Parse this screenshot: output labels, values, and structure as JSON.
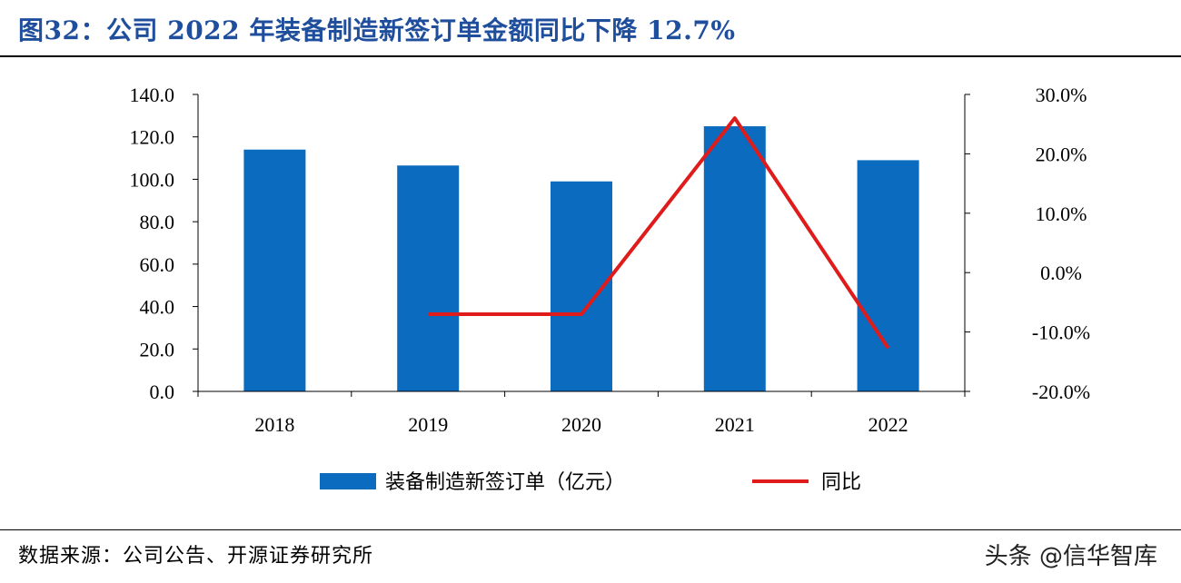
{
  "header": {
    "title": "图32：公司 2022 年装备制造新签订单金额同比下降 12.7%"
  },
  "footer": {
    "source": "数据来源：公司公告、开源证券研究所",
    "watermark": "头条 @信华智库"
  },
  "colors": {
    "bar": "#0b6cbf",
    "line": "#e01b1b",
    "title": "#1f4e9c"
  },
  "chart_data": {
    "type": "bar",
    "title": "公司 2022 年装备制造新签订单金额同比下降 12.7%",
    "categories": [
      "2018",
      "2019",
      "2020",
      "2021",
      "2022"
    ],
    "series": [
      {
        "name": "装备制造新签订单（亿元）",
        "type": "bar",
        "axis": "left",
        "values": [
          114.0,
          106.5,
          99.0,
          125.0,
          109.0
        ]
      },
      {
        "name": "同比",
        "type": "line",
        "axis": "right",
        "values": [
          null,
          -7.0,
          -7.0,
          26.0,
          -12.7
        ]
      }
    ],
    "left_axis": {
      "ylim": [
        0,
        140
      ],
      "ticks": [
        "0.0",
        "20.0",
        "40.0",
        "60.0",
        "80.0",
        "100.0",
        "120.0",
        "140.0"
      ]
    },
    "right_axis": {
      "ylim": [
        -20,
        30
      ],
      "ticks": [
        "-20.0%",
        "-10.0%",
        "0.0%",
        "10.0%",
        "20.0%",
        "30.0%"
      ]
    },
    "xlabel": "",
    "ylabel": "",
    "grid": false,
    "legend_position": "bottom-center"
  }
}
